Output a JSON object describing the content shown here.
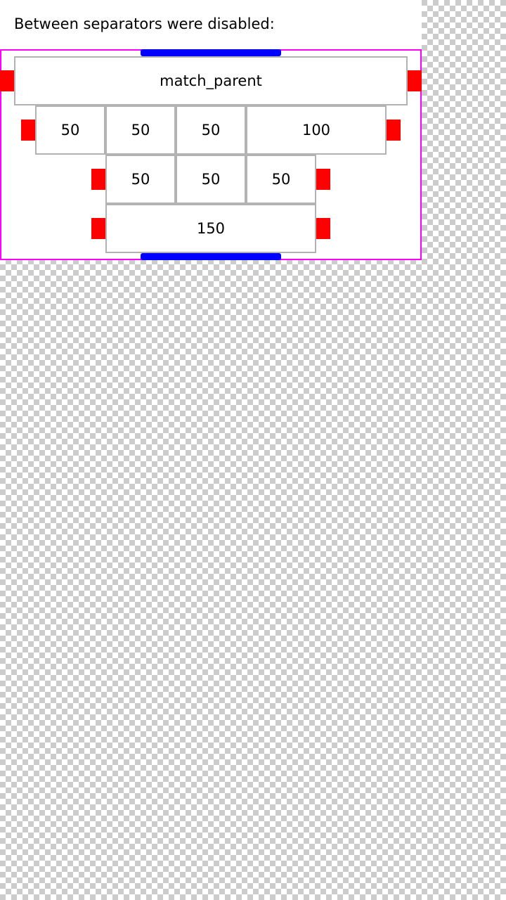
{
  "header": {
    "title": "Between separators were disabled:"
  },
  "rows": [
    {
      "items": [
        "match_parent"
      ]
    },
    {
      "items": [
        "50",
        "50",
        "50",
        "100"
      ]
    },
    {
      "items": [
        "50",
        "50",
        "50"
      ]
    },
    {
      "items": [
        "150"
      ]
    }
  ],
  "colors": {
    "container_border": "#ff00ff",
    "side_separator": "#ff0000",
    "top_bottom_separator": "#0000ff",
    "cell_border": "#b3b3b3"
  }
}
